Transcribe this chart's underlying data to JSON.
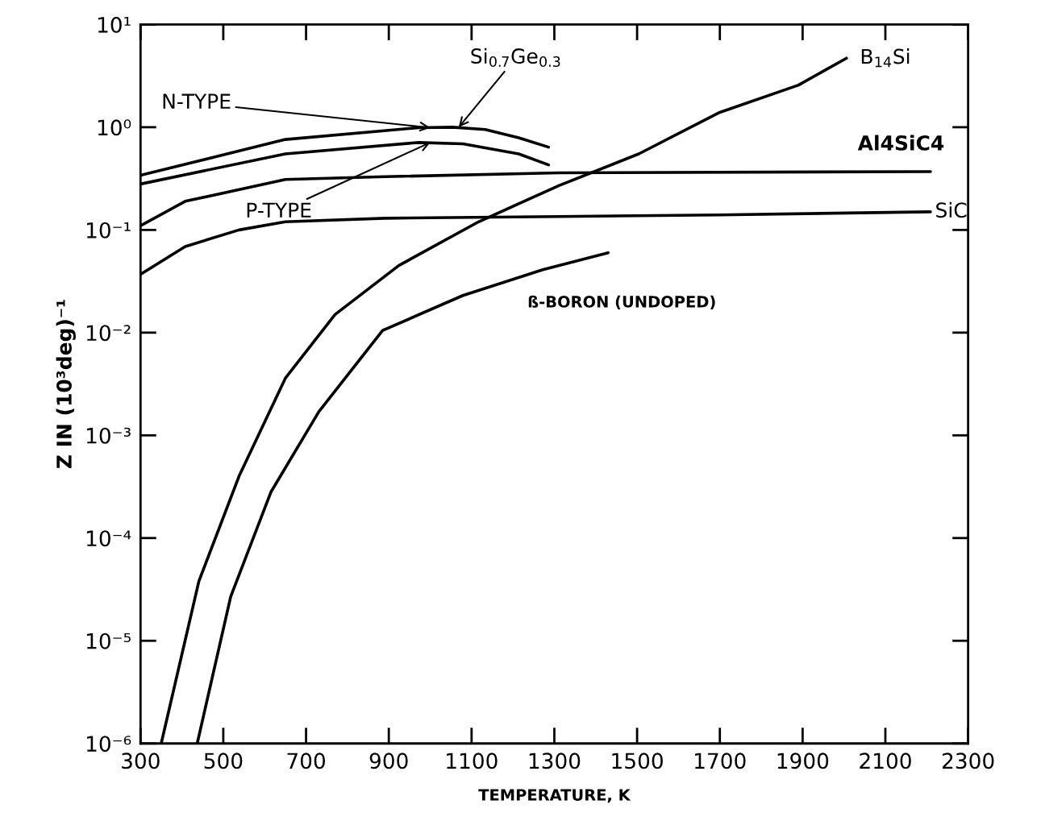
{
  "chart_data": {
    "type": "line",
    "xlabel": "TEMPERATURE, K",
    "ylabel": "Z IN (10³deg)⁻¹",
    "log": "y",
    "grid": false,
    "legend": false,
    "marker": "none",
    "line_style": "solid",
    "xlim": [
      300,
      2300
    ],
    "xticks": [
      300,
      500,
      700,
      900,
      1100,
      1300,
      1500,
      1700,
      1900,
      2100,
      2300
    ],
    "ylim": [
      1e-06,
      10
    ],
    "yticks": [
      {
        "value": 1e-06,
        "label": "10⁻⁶"
      },
      {
        "value": 1e-05,
        "label": "10⁻⁵"
      },
      {
        "value": 0.0001,
        "label": "10⁻⁴"
      },
      {
        "value": 0.001,
        "label": "10⁻³"
      },
      {
        "value": 0.01,
        "label": "10⁻²"
      },
      {
        "value": 0.1,
        "label": "10⁻¹"
      },
      {
        "value": 1,
        "label": "10⁰"
      },
      {
        "value": 10,
        "label": "10¹"
      }
    ],
    "series": [
      {
        "color": "#000000",
        "x": [
          300,
          650,
          972,
          1054,
          1133,
          1214,
          1286
        ],
        "values": [
          0.34,
          0.76,
          0.99,
          1.0,
          0.95,
          0.79,
          0.64
        ]
      },
      {
        "color": "#000000",
        "x": [
          300,
          650,
          972,
          1079,
          1214,
          1286
        ],
        "values": [
          0.28,
          0.55,
          0.71,
          0.69,
          0.55,
          0.43
        ]
      },
      {
        "color": "#000000",
        "x": [
          300,
          408,
          650,
          891,
          1311,
          2209
        ],
        "values": [
          0.11,
          0.19,
          0.31,
          0.33,
          0.36,
          0.37
        ]
      },
      {
        "color": "#000000",
        "x": [
          300,
          408,
          538,
          650,
          891,
          1311,
          1697,
          2209
        ],
        "values": [
          0.037,
          0.069,
          0.1,
          0.12,
          0.13,
          0.135,
          0.14,
          0.15
        ]
      },
      {
        "color": "#000000",
        "x": [
          350,
          441,
          538,
          650,
          770,
          924,
          1117,
          1311,
          1504,
          1697,
          1890,
          2006
        ],
        "values": [
          1e-06,
          3.8e-05,
          0.0004,
          0.0036,
          0.015,
          0.045,
          0.12,
          0.27,
          0.55,
          1.38,
          2.57,
          4.7
        ]
      },
      {
        "color": "#000000",
        "x": [
          437,
          518,
          615,
          731,
          885,
          1079,
          1272,
          1430
        ],
        "values": [
          1e-06,
          2.7e-05,
          0.00028,
          0.0017,
          0.0105,
          0.023,
          0.041,
          0.06
        ]
      }
    ],
    "annotations": [
      {
        "text": "N-TYPE",
        "x": 1000,
        "y": 0.99
      },
      {
        "text": "P-TYPE",
        "x": 1000,
        "y": 0.71
      },
      {
        "text": "Si$_{0.7}$Ge$_{0.3}$",
        "x": 1069,
        "y": 1.0
      },
      {
        "text": "B$_{14}$Si",
        "x": 2006,
        "y": 4.7
      },
      {
        "text": "Al4SiC4",
        "x": 2209,
        "y": 0.37
      },
      {
        "text": "SiC",
        "x": 2209,
        "y": 0.15
      },
      {
        "text": "ß-BORON (UNDOPED)",
        "x": 1430,
        "y": 0.06
      }
    ]
  }
}
